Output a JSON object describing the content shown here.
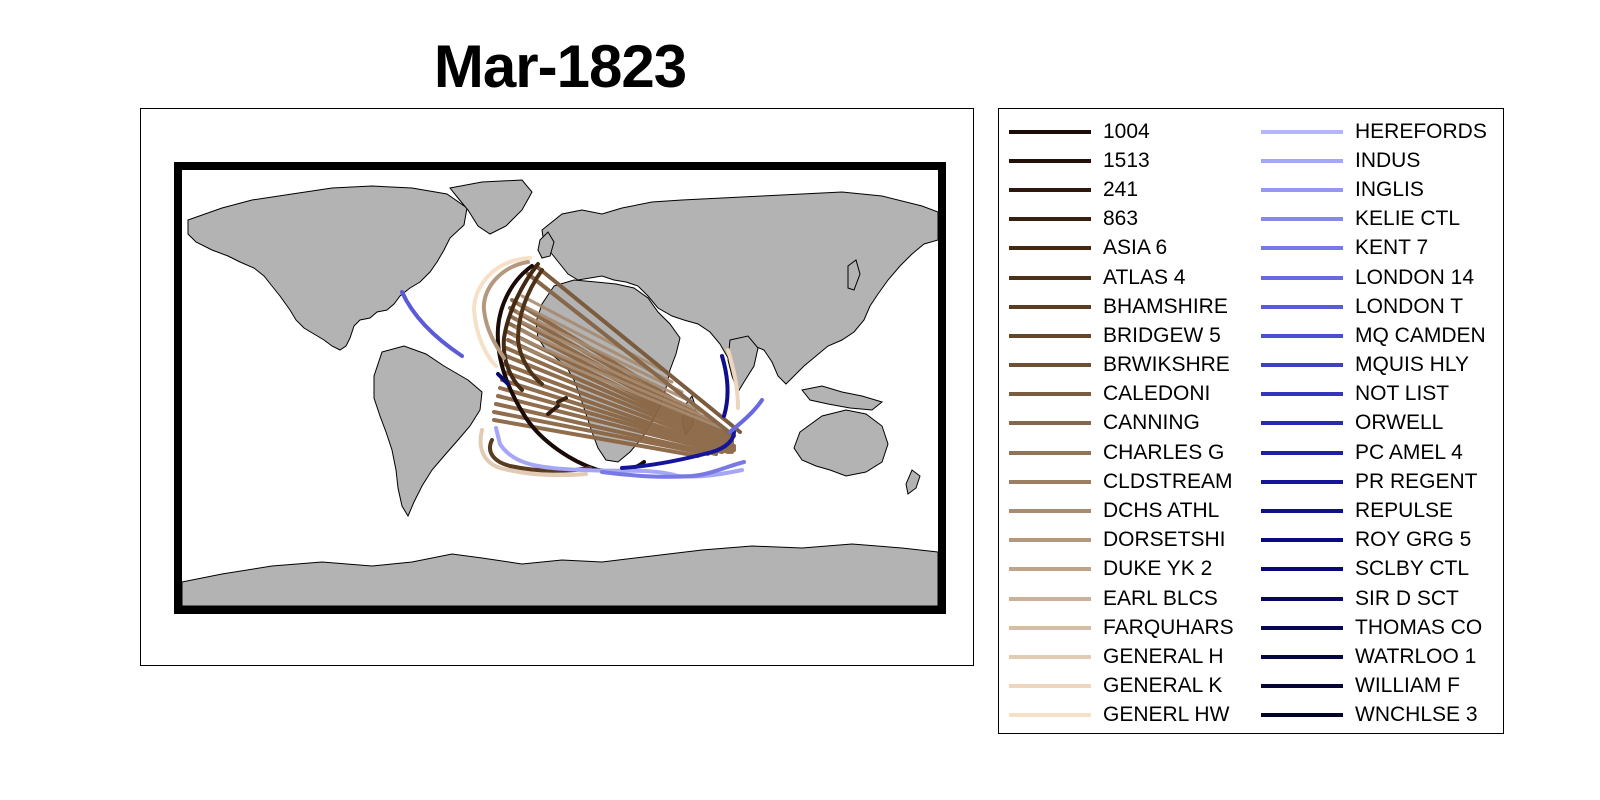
{
  "title": "Mar-1823",
  "legend": {
    "entries": [
      {
        "label": "1004",
        "color": "#1a0a08"
      },
      {
        "label": "1513",
        "color": "#24100a"
      },
      {
        "label": "241",
        "color": "#2e170c"
      },
      {
        "label": "863",
        "color": "#38200f"
      },
      {
        "label": "ASIA 6",
        "color": "#432913"
      },
      {
        "label": "ATLAS 4",
        "color": "#4e3218"
      },
      {
        "label": "BHAMSHIRE",
        "color": "#5a3c20"
      },
      {
        "label": "BRIDGEW 5",
        "color": "#654629"
      },
      {
        "label": "BRWIKSHRE",
        "color": "#705033"
      },
      {
        "label": "CALEDONI",
        "color": "#7b5c3e"
      },
      {
        "label": "CANNING",
        "color": "#86674a"
      },
      {
        "label": "CHARLES G",
        "color": "#917356"
      },
      {
        "label": "CLDSTREAM",
        "color": "#9c7f63"
      },
      {
        "label": "DCHS ATHL",
        "color": "#a88b70"
      },
      {
        "label": "DORSETSHI",
        "color": "#b3987d"
      },
      {
        "label": "DUKE YK 2",
        "color": "#bfa48a"
      },
      {
        "label": "EARL BLCS",
        "color": "#cab198"
      },
      {
        "label": "FARQUHARS",
        "color": "#d6bea6"
      },
      {
        "label": "GENERAL H",
        "color": "#e2cbb3"
      },
      {
        "label": "GENERAL K",
        "color": "#edd6bd"
      },
      {
        "label": "GENERL HW",
        "color": "#f6e1c8"
      },
      {
        "label": "HEREFORDS",
        "color": "#b5b5fb"
      },
      {
        "label": "INDUS",
        "color": "#a6a6f6"
      },
      {
        "label": "INGLIS",
        "color": "#9797f1"
      },
      {
        "label": "KELIE CTL",
        "color": "#8787ec"
      },
      {
        "label": "KENT 7",
        "color": "#7878e6"
      },
      {
        "label": "LONDON 14",
        "color": "#6969df"
      },
      {
        "label": "LONDON T",
        "color": "#5b5bd7"
      },
      {
        "label": "MQ CAMDEN",
        "color": "#4d4dcf"
      },
      {
        "label": "MQUIS HLY",
        "color": "#4040c6"
      },
      {
        "label": "NOT LIST",
        "color": "#3434bd"
      },
      {
        "label": "ORWELL",
        "color": "#2828b2"
      },
      {
        "label": "PC AMEL 4",
        "color": "#1e1ea8"
      },
      {
        "label": "PR REGENT",
        "color": "#15159c"
      },
      {
        "label": "REPULSE",
        "color": "#0e0e8e"
      },
      {
        "label": "ROY GRG 5",
        "color": "#0a0a80"
      },
      {
        "label": "SCLBY CTL",
        "color": "#080871"
      },
      {
        "label": "SIR D SCT",
        "color": "#070762"
      },
      {
        "label": "THOMAS CO",
        "color": "#060654"
      },
      {
        "label": "WATRLOO 1",
        "color": "#050545"
      },
      {
        "label": "WILLIAM F",
        "color": "#040437"
      },
      {
        "label": "WNCHLSE 3",
        "color": "#03032a"
      }
    ]
  },
  "colors": {
    "land": "#b3b3b3",
    "coast": "#000000",
    "ocean": "#ffffff"
  }
}
